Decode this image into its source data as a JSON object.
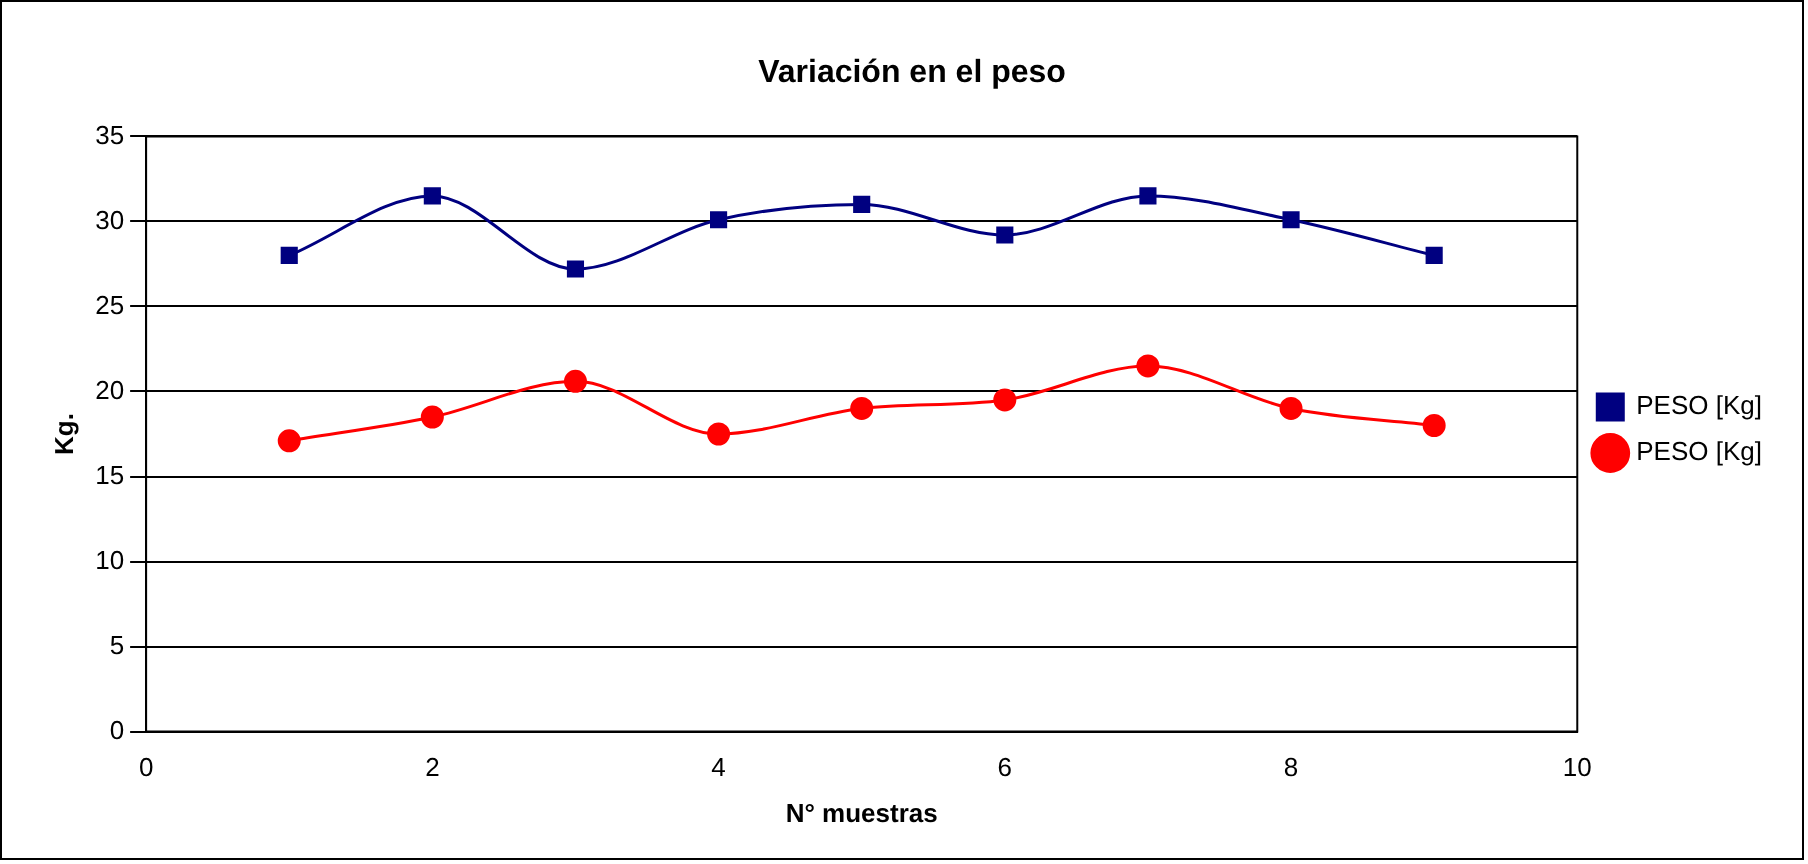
{
  "chart_data": {
    "type": "line",
    "title": "Variación en el peso",
    "xlabel": "N° muestras",
    "ylabel": "Kg.",
    "x": [
      1,
      2,
      3,
      4,
      5,
      6,
      7,
      8,
      9
    ],
    "series": [
      {
        "name": "PESO [Kg]",
        "color": "#000080",
        "marker": "square",
        "values": [
          28,
          31.5,
          27.2,
          30.1,
          31,
          29.2,
          31.5,
          30.1,
          28
        ]
      },
      {
        "name": "PESO [Kg]",
        "color": "#ff0000",
        "marker": "circle",
        "values": [
          17.1,
          18.5,
          20.6,
          17.5,
          19,
          19.5,
          21.5,
          19,
          18
        ]
      }
    ],
    "xlim": [
      0,
      10
    ],
    "xticks": [
      0,
      2,
      4,
      6,
      8,
      10
    ],
    "ylim": [
      0,
      35
    ],
    "yticks": [
      0,
      5,
      10,
      15,
      20,
      25,
      30,
      35
    ],
    "grid": "y",
    "legend": "right"
  }
}
